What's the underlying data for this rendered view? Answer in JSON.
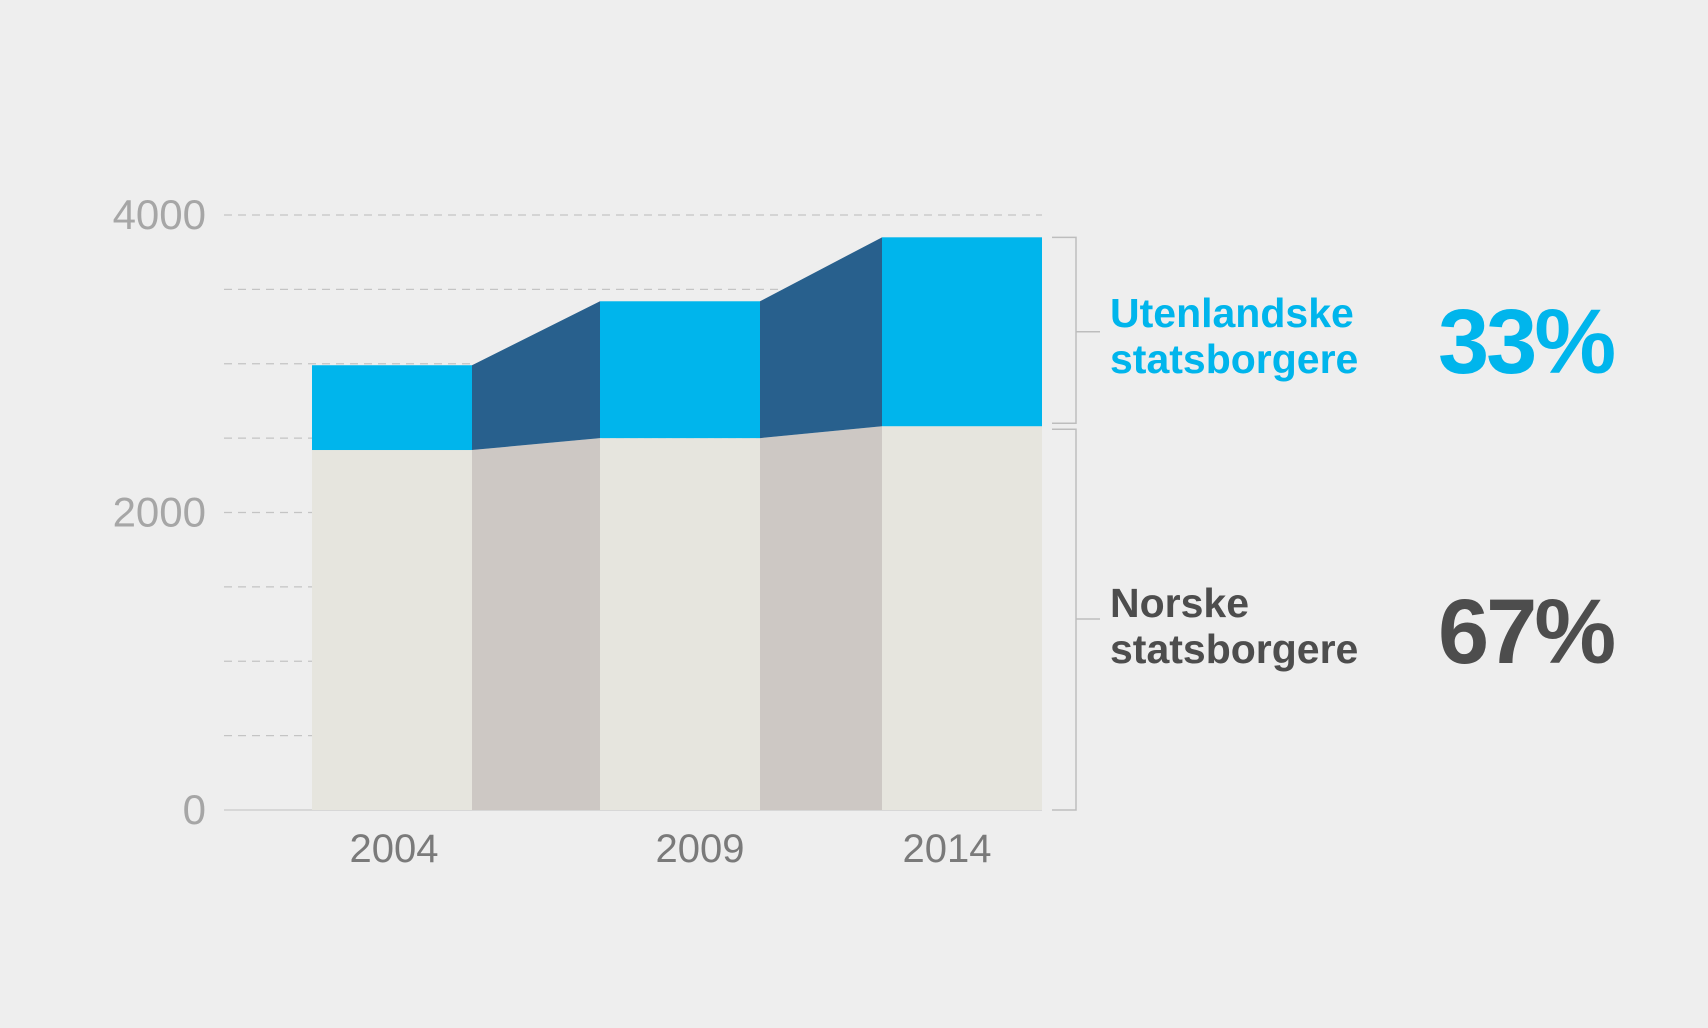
{
  "chart_data": {
    "type": "bar",
    "stacked": true,
    "categories": [
      "2004",
      "2009",
      "2014"
    ],
    "series": [
      {
        "name": "Norske statsborgere",
        "values": [
          2420,
          2500,
          2580
        ],
        "color": "#e6e5de",
        "connector_color": "#cdc8c4"
      },
      {
        "name": "Utenlandske statsborgere",
        "values": [
          570,
          920,
          1270
        ],
        "color": "#00b5ec",
        "connector_color": "#28608d"
      }
    ],
    "ylim": [
      0,
      4000
    ],
    "y_ticks": [
      "0",
      "2000",
      "4000"
    ],
    "minor_gridlines": [
      500,
      1000,
      1500,
      2000,
      2500,
      3000,
      3500,
      4000
    ],
    "grid": true,
    "title": "",
    "xlabel": "",
    "ylabel": ""
  },
  "legend": {
    "foreign": {
      "label_line1": "Utenlandske",
      "label_line2": "statsborgere",
      "percent": "33%",
      "color": "#00b5ec"
    },
    "norwegian": {
      "label_line1": "Norske",
      "label_line2": "statsborgere",
      "percent": "67%",
      "color": "#4d4d4d"
    }
  }
}
